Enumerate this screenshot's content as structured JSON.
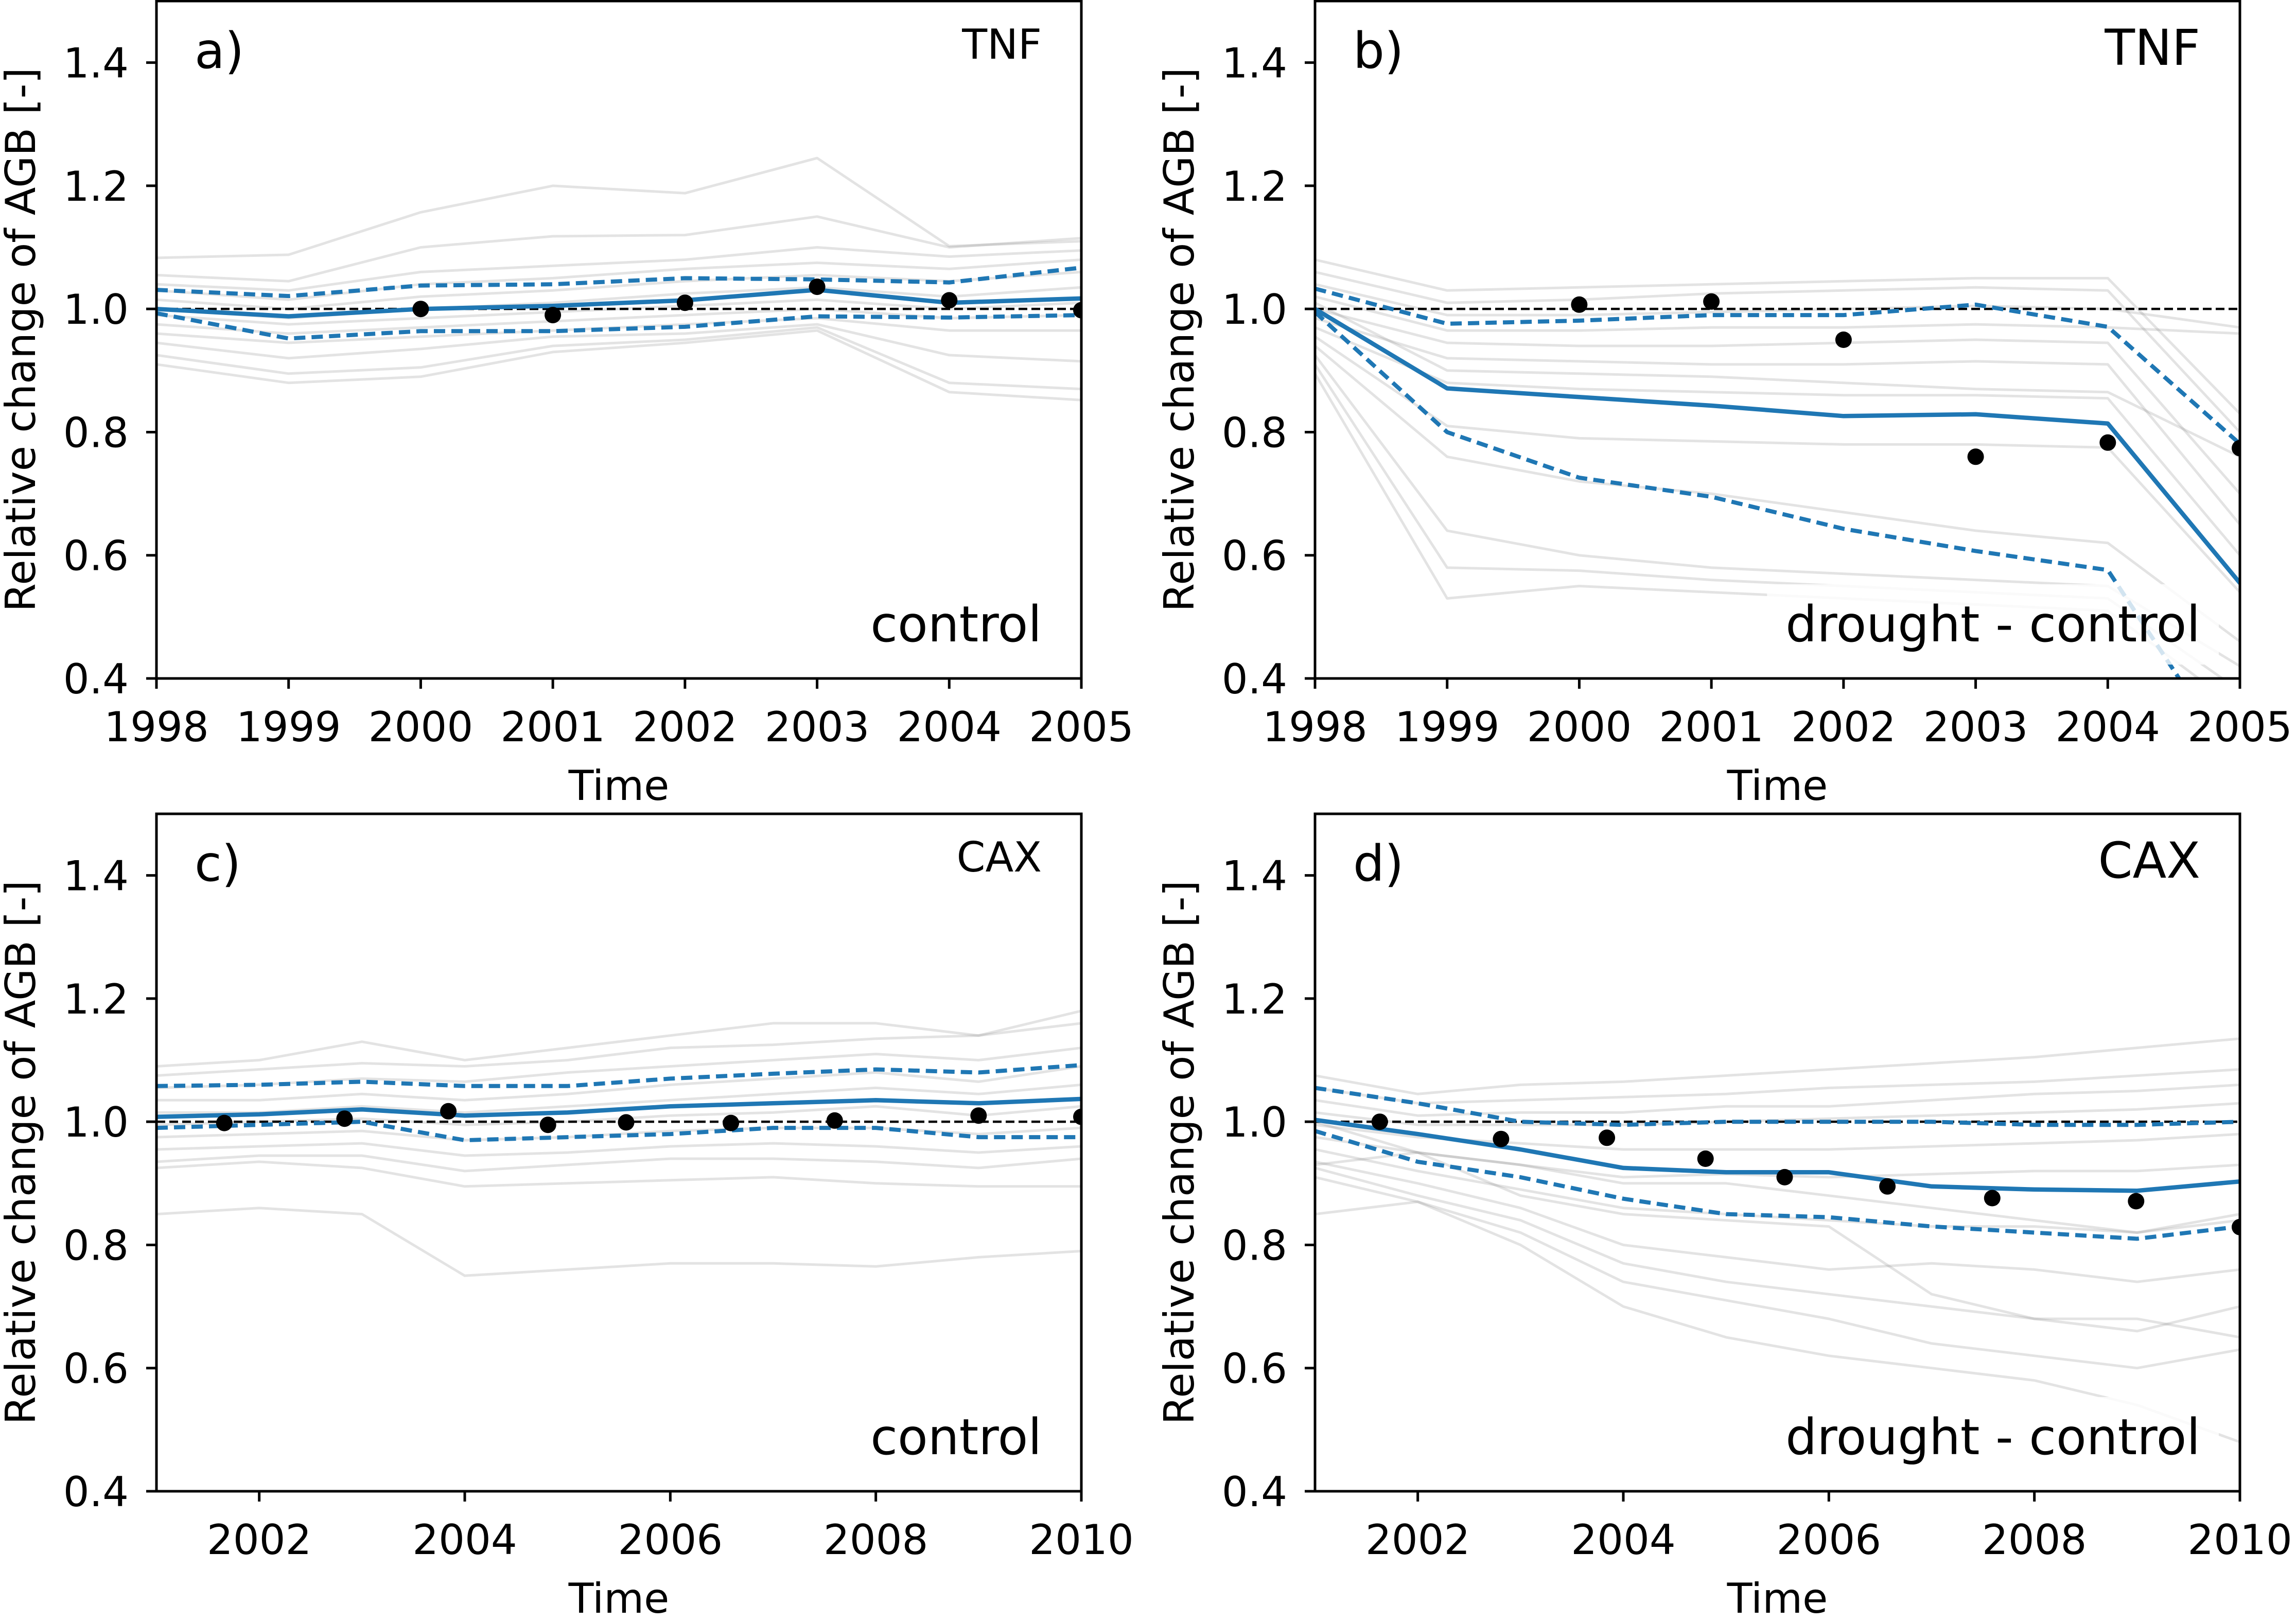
{
  "colors": {
    "ensemble": "#808080",
    "central_line": "#1f77b4",
    "bounds": "#1f77b4",
    "observations": "#000000",
    "reference": "#000000"
  },
  "chart_data": [
    {
      "type": "line",
      "panel_label": "a)",
      "site": "TNF",
      "scenario": "control",
      "xlabel": "Time",
      "ylabel": "Relative change of AGB [-]",
      "xlim": [
        1998,
        2005
      ],
      "ylim": [
        0.4,
        1.5
      ],
      "xticks": [
        "1998",
        "1999",
        "2000",
        "2001",
        "2002",
        "2003",
        "2004",
        "2005"
      ],
      "yticks": [
        "0.4",
        "0.6",
        "0.8",
        "1.0",
        "1.2",
        "1.4"
      ],
      "reference_line": 1.0,
      "x": [
        1998,
        1999,
        2000,
        2001,
        2002,
        2003,
        2004,
        2005
      ],
      "ensemble_members": [
        [
          1.083,
          1.088,
          1.157,
          1.2,
          1.188,
          1.245,
          1.102,
          1.11
        ],
        [
          1.055,
          1.045,
          1.1,
          1.118,
          1.12,
          1.15,
          1.1,
          1.115
        ],
        [
          1.04,
          1.03,
          1.06,
          1.07,
          1.08,
          1.1,
          1.085,
          1.095
        ],
        [
          1.03,
          1.015,
          1.04,
          1.05,
          1.065,
          1.075,
          1.065,
          1.08
        ],
        [
          1.015,
          1.0,
          1.02,
          1.03,
          1.045,
          1.055,
          1.045,
          1.06
        ],
        [
          1.0,
          0.985,
          1.0,
          1.01,
          1.025,
          1.035,
          1.02,
          1.035
        ],
        [
          0.99,
          0.975,
          0.985,
          0.995,
          1.005,
          1.015,
          1.0,
          1.01
        ],
        [
          0.975,
          0.96,
          0.97,
          0.98,
          0.99,
          1.0,
          0.985,
          0.99
        ],
        [
          0.96,
          0.945,
          0.955,
          0.965,
          0.975,
          0.985,
          0.965,
          0.965
        ],
        [
          0.945,
          0.92,
          0.935,
          0.955,
          0.96,
          0.975,
          0.925,
          0.915
        ],
        [
          0.925,
          0.895,
          0.905,
          0.94,
          0.95,
          0.97,
          0.88,
          0.87
        ],
        [
          0.91,
          0.88,
          0.89,
          0.93,
          0.945,
          0.965,
          0.865,
          0.852
        ]
      ],
      "central_line": [
        1.0,
        0.988,
        1.0,
        1.005,
        1.014,
        1.031,
        1.01,
        1.017
      ],
      "upper_bound": [
        1.031,
        1.021,
        1.038,
        1.04,
        1.05,
        1.048,
        1.043,
        1.067
      ],
      "lower_bound": [
        0.993,
        0.952,
        0.964,
        0.964,
        0.971,
        0.988,
        0.986,
        0.99
      ],
      "observed_points": {
        "x": [
          2000,
          2001,
          2002,
          2003,
          2004,
          2005
        ],
        "y": [
          1.0,
          0.99,
          1.01,
          1.036,
          1.014,
          0.998
        ]
      }
    },
    {
      "type": "line",
      "panel_label": "b)",
      "site": "TNF",
      "scenario": "drought - control",
      "xlabel": "Time",
      "ylabel": "Relative change of AGB [-]",
      "xlim": [
        1998,
        2005
      ],
      "ylim": [
        0.4,
        1.5
      ],
      "xticks": [
        "1998",
        "1999",
        "2000",
        "2001",
        "2002",
        "2003",
        "2004",
        "2005"
      ],
      "yticks": [
        "0.4",
        "0.6",
        "0.8",
        "1.0",
        "1.2",
        "1.4"
      ],
      "reference_line": 1.0,
      "x": [
        1998,
        1999,
        2000,
        2001,
        2002,
        2003,
        2004,
        2005
      ],
      "ensemble_members": [
        [
          1.08,
          1.03,
          1.035,
          1.04,
          1.045,
          1.05,
          1.05,
          0.83
        ],
        [
          1.06,
          1.01,
          1.015,
          1.025,
          1.03,
          1.035,
          1.03,
          0.8
        ],
        [
          1.04,
          0.99,
          0.99,
          0.995,
          1.0,
          1.005,
          1.0,
          0.97
        ],
        [
          1.02,
          0.965,
          0.965,
          0.97,
          0.97,
          0.975,
          0.97,
          0.96
        ],
        [
          1.0,
          0.945,
          0.94,
          0.94,
          0.945,
          0.95,
          0.945,
          0.7
        ],
        [
          0.985,
          0.92,
          0.915,
          0.91,
          0.91,
          0.915,
          0.91,
          0.65
        ],
        [
          0.97,
          0.88,
          0.87,
          0.865,
          0.86,
          0.86,
          0.855,
          0.6
        ],
        [
          0.955,
          0.81,
          0.79,
          0.785,
          0.78,
          0.78,
          0.775,
          0.54
        ],
        [
          0.94,
          0.76,
          0.72,
          0.7,
          0.67,
          0.64,
          0.62,
          0.46
        ],
        [
          0.925,
          0.64,
          0.6,
          0.58,
          0.57,
          0.56,
          0.55,
          0.42
        ],
        [
          0.91,
          0.58,
          0.575,
          0.56,
          0.55,
          0.54,
          0.53,
          0.38
        ],
        [
          0.895,
          0.53,
          0.55,
          0.54,
          0.53,
          0.52,
          0.51,
          0.35
        ],
        [
          1.01,
          0.9,
          0.895,
          0.89,
          0.88,
          0.87,
          0.865,
          0.76
        ]
      ],
      "central_line": [
        1.0,
        0.871,
        0.857,
        0.843,
        0.826,
        0.829,
        0.814,
        0.555
      ],
      "upper_bound": [
        1.033,
        0.976,
        0.981,
        0.99,
        0.99,
        1.007,
        0.971,
        0.781
      ],
      "lower_bound": [
        0.995,
        0.8,
        0.726,
        0.695,
        0.643,
        0.607,
        0.576,
        0.25
      ],
      "observed_points": {
        "x": [
          2000,
          2001,
          2002,
          2003,
          2004,
          2005
        ],
        "y": [
          1.007,
          1.012,
          0.95,
          0.76,
          0.783,
          0.774
        ]
      }
    },
    {
      "type": "line",
      "panel_label": "c)",
      "site": "CAX",
      "scenario": "control",
      "xlabel": "Time",
      "ylabel": "Relative change of AGB [-]",
      "xlim": [
        2001,
        2010
      ],
      "ylim": [
        0.4,
        1.5
      ],
      "xticks": [
        "2002",
        "2004",
        "2006",
        "2008",
        "2010"
      ],
      "yticks": [
        "0.4",
        "0.6",
        "0.8",
        "1.0",
        "1.2",
        "1.4"
      ],
      "reference_line": 1.0,
      "x": [
        2001,
        2002,
        2003,
        2004,
        2005,
        2006,
        2007,
        2008,
        2009,
        2010
      ],
      "ensemble_members": [
        [
          1.09,
          1.1,
          1.13,
          1.1,
          1.12,
          1.14,
          1.16,
          1.16,
          1.14,
          1.18
        ],
        [
          1.075,
          1.085,
          1.095,
          1.09,
          1.1,
          1.12,
          1.125,
          1.135,
          1.14,
          1.16
        ],
        [
          1.055,
          1.06,
          1.07,
          1.065,
          1.08,
          1.09,
          1.1,
          1.11,
          1.1,
          1.12
        ],
        [
          1.035,
          1.035,
          1.045,
          1.035,
          1.045,
          1.06,
          1.07,
          1.08,
          1.065,
          1.09
        ],
        [
          1.015,
          1.015,
          1.025,
          1.015,
          1.025,
          1.035,
          1.045,
          1.055,
          1.045,
          1.06
        ],
        [
          0.995,
          1.0,
          1.005,
          0.995,
          1.0,
          1.01,
          1.015,
          1.025,
          1.01,
          1.025
        ],
        [
          0.975,
          0.98,
          0.985,
          0.97,
          0.975,
          0.985,
          0.99,
          0.99,
          0.98,
          0.99
        ],
        [
          0.955,
          0.96,
          0.965,
          0.945,
          0.95,
          0.96,
          0.965,
          0.96,
          0.95,
          0.96
        ],
        [
          0.935,
          0.945,
          0.945,
          0.92,
          0.93,
          0.94,
          0.94,
          0.935,
          0.925,
          0.94
        ],
        [
          0.925,
          0.935,
          0.925,
          0.895,
          0.9,
          0.905,
          0.91,
          0.9,
          0.895,
          0.895
        ],
        [
          0.85,
          0.86,
          0.85,
          0.75,
          0.76,
          0.77,
          0.77,
          0.765,
          0.78,
          0.79
        ]
      ],
      "central_line": [
        1.008,
        1.012,
        1.02,
        1.01,
        1.015,
        1.025,
        1.03,
        1.035,
        1.03,
        1.037
      ],
      "upper_bound": [
        1.058,
        1.06,
        1.065,
        1.058,
        1.058,
        1.07,
        1.078,
        1.085,
        1.08,
        1.092
      ],
      "lower_bound": [
        0.99,
        0.995,
        1.0,
        0.97,
        0.975,
        0.98,
        0.99,
        0.99,
        0.975,
        0.975
      ],
      "observed_points": {
        "x": [
          2001.66,
          2002.83,
          2003.84,
          2004.81,
          2005.57,
          2006.59,
          2007.6,
          2009.0,
          2010.0
        ],
        "y": [
          0.998,
          1.005,
          1.017,
          0.995,
          0.999,
          0.998,
          1.002,
          1.01,
          1.008
        ]
      }
    },
    {
      "type": "line",
      "panel_label": "d)",
      "site": "CAX",
      "scenario": "drought - control",
      "xlabel": "Time",
      "ylabel": "Relative change of AGB [-]",
      "xlim": [
        2001,
        2010
      ],
      "ylim": [
        0.4,
        1.5
      ],
      "xticks": [
        "2002",
        "2004",
        "2006",
        "2008",
        "2010"
      ],
      "yticks": [
        "0.4",
        "0.6",
        "0.8",
        "1.0",
        "1.2",
        "1.4"
      ],
      "reference_line": 1.0,
      "x": [
        2001,
        2002,
        2003,
        2004,
        2005,
        2006,
        2007,
        2008,
        2009,
        2010
      ],
      "ensemble_members": [
        [
          1.075,
          1.045,
          1.06,
          1.065,
          1.075,
          1.085,
          1.095,
          1.105,
          1.12,
          1.135
        ],
        [
          1.055,
          1.03,
          1.035,
          1.04,
          1.045,
          1.055,
          1.06,
          1.065,
          1.075,
          1.085
        ],
        [
          1.035,
          1.01,
          1.015,
          1.015,
          1.025,
          1.025,
          1.035,
          1.045,
          1.05,
          1.06
        ],
        [
          1.015,
          0.995,
          0.995,
          0.995,
          1.0,
          1.005,
          1.01,
          1.015,
          1.02,
          1.03
        ],
        [
          0.995,
          0.975,
          0.965,
          0.955,
          0.955,
          0.955,
          0.96,
          0.965,
          0.97,
          0.98
        ],
        [
          0.975,
          0.95,
          0.93,
          0.91,
          0.915,
          0.91,
          0.915,
          0.92,
          0.92,
          0.93
        ],
        [
          0.955,
          0.92,
          0.89,
          0.86,
          0.85,
          0.84,
          0.83,
          0.83,
          0.82,
          0.85
        ],
        [
          0.935,
          0.9,
          0.86,
          0.8,
          0.78,
          0.76,
          0.77,
          0.76,
          0.74,
          0.76
        ],
        [
          0.925,
          0.88,
          0.84,
          0.77,
          0.74,
          0.72,
          0.7,
          0.68,
          0.66,
          0.7
        ],
        [
          0.91,
          0.87,
          0.82,
          0.74,
          0.71,
          0.68,
          0.64,
          0.62,
          0.6,
          0.63
        ],
        [
          0.85,
          0.87,
          0.8,
          0.7,
          0.65,
          0.62,
          0.6,
          0.58,
          0.54,
          0.48
        ],
        [
          1.0,
          0.95,
          0.93,
          0.9,
          0.9,
          0.88,
          0.86,
          0.84,
          0.82,
          0.84
        ],
        [
          0.93,
          0.95,
          0.88,
          0.85,
          0.84,
          0.83,
          0.72,
          0.68,
          0.68,
          0.65
        ]
      ],
      "central_line": [
        1.003,
        0.98,
        0.955,
        0.925,
        0.918,
        0.918,
        0.895,
        0.89,
        0.888,
        0.903
      ],
      "upper_bound": [
        1.055,
        1.03,
        1.0,
        0.995,
        1.0,
        1.0,
        1.0,
        0.995,
        0.995,
        1.0
      ],
      "lower_bound": [
        0.985,
        0.935,
        0.91,
        0.875,
        0.85,
        0.845,
        0.83,
        0.82,
        0.81,
        0.83
      ],
      "observed_points": {
        "x": [
          2001.63,
          2002.81,
          2003.84,
          2004.8,
          2005.57,
          2006.57,
          2007.59,
          2008.99,
          2010.0
        ],
        "y": [
          1.0,
          0.972,
          0.974,
          0.94,
          0.91,
          0.895,
          0.876,
          0.871,
          0.829
        ]
      }
    }
  ]
}
